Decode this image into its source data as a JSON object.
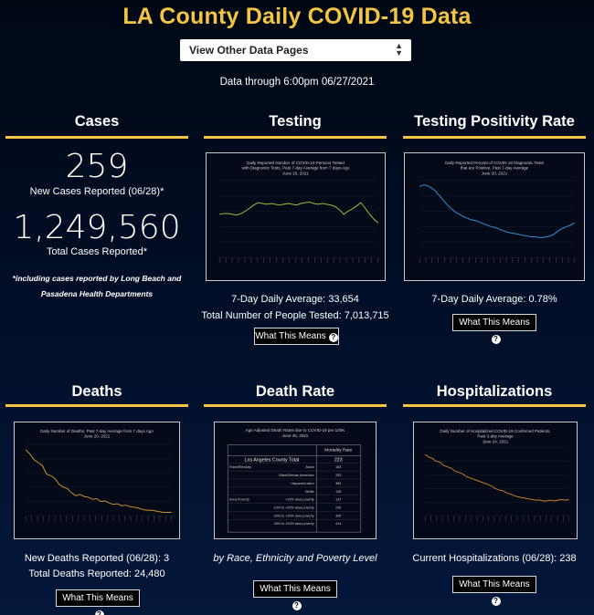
{
  "header": {
    "title": "LA County Daily COVID-19 Data",
    "select_value": "View Other Data Pages",
    "data_through": "Data through 6:00pm 06/27/2021"
  },
  "cases": {
    "title": "Cases",
    "new_cases": "259",
    "new_cases_label": "New Cases Reported (06/28)*",
    "total_cases": "1,249,560",
    "total_cases_label": "Total Cases Reported*",
    "note": "*including cases reported by Long Beach and Pasadena Health Departments"
  },
  "testing": {
    "title": "Testing",
    "chart_title_1": "Daily Reported Number of COVID-19 Persons Tested",
    "chart_title_2": "with Diagnostic Tests, Past 7-day Average from 7 days Ago",
    "chart_title_3": "June 20, 2021",
    "avg": "7-Day Daily Average: 33,654",
    "total": "Total Number of People Tested: 7,013,715",
    "button": "What This Means"
  },
  "positivity": {
    "title": "Testing Positivity Rate",
    "chart_title_1": "Daily Reported Percent of COVID-19 Diagnostic Tests",
    "chart_title_2": "that are Positive, Past 7-day Average",
    "chart_title_3": "June 20, 2021",
    "avg": "7-Day Daily Average: 0.78%",
    "button": "What This Means"
  },
  "deaths": {
    "title": "Deaths",
    "chart_title_1": "Daily Number of Deaths, Past 7-day Average from 7 days Ago",
    "chart_title_2": "June 20, 2021",
    "new": "New Deaths Reported (06/28): 3",
    "total": "Total Deaths Reported: 24,480",
    "button": "What This Means"
  },
  "death_rate": {
    "title": "Death Rate",
    "table_title_1": "Age Adjusted Death Rates due to COVID-19 per 100K",
    "table_title_2": "June 26, 2021",
    "col_header": "Mortality Rate",
    "county_label": "Los Angeles County Total",
    "county_value": "223",
    "rows": [
      {
        "group": "Race/Ethnicity",
        "label": "Asian",
        "value": "183"
      },
      {
        "group": "",
        "label": "Black/African American",
        "value": "253"
      },
      {
        "group": "",
        "label": "Hispanic/Latino",
        "value": "384"
      },
      {
        "group": "",
        "label": "White",
        "value": "128"
      },
      {
        "group": "Area Poverty",
        "label": "<10% area poverty",
        "value": "137"
      },
      {
        "group": "",
        "label": "10% to <20% area poverty",
        "value": "230"
      },
      {
        "group": "",
        "label": "20% to <30% area poverty",
        "value": "305"
      },
      {
        "group": "",
        "label": "30% to 100% area poverty",
        "value": "414"
      }
    ],
    "subtitle": "by Race, Ethnicity and Poverty Level",
    "button": "What This Means"
  },
  "hospitalizations": {
    "title": "Hospitalizations",
    "chart_title_1": "Daily Number of Hospitalized COVID-19 Confirmed Patients,",
    "chart_title_2": "Past 3-day Average",
    "chart_title_3": "June 24, 2021",
    "current": "Current Hospitalizations (06/28): 238",
    "button": "What This Means"
  },
  "colors": {
    "accent": "#f4c542",
    "testing_line": "#9bbf3a",
    "positivity_line": "#2f8fe0",
    "deaths_line": "#c9962a",
    "hosp_line": "#c9822a"
  },
  "chart_data": [
    {
      "type": "line",
      "name": "testing",
      "values": [
        56,
        57,
        57,
        56,
        55,
        57,
        60,
        64,
        68,
        71,
        70,
        69,
        70,
        69,
        68,
        69,
        70,
        69,
        68,
        70,
        71,
        72,
        70,
        69,
        70,
        69,
        68,
        66,
        62,
        56,
        60,
        63,
        67,
        71,
        64,
        56,
        50,
        45
      ]
    },
    {
      "type": "line",
      "name": "positivity",
      "values": [
        92,
        94,
        93,
        90,
        86,
        80,
        74,
        68,
        63,
        59,
        56,
        53,
        51,
        49,
        48,
        46,
        44,
        42,
        40,
        39,
        37,
        35,
        33,
        32,
        31,
        30,
        29,
        28,
        27,
        27,
        26,
        26,
        27,
        28,
        31,
        35,
        38,
        40,
        42,
        45
      ]
    },
    {
      "type": "line",
      "name": "deaths",
      "values": [
        92,
        86,
        78,
        74,
        70,
        58,
        56,
        52,
        44,
        40,
        38,
        32,
        28,
        30,
        27,
        26,
        23,
        24,
        20,
        21,
        18,
        16,
        17,
        14,
        15,
        13,
        12,
        11,
        9,
        8,
        8,
        7,
        6,
        5,
        5,
        5
      ]
    },
    {
      "type": "line",
      "name": "hospitalizations",
      "values": [
        90,
        86,
        84,
        80,
        79,
        74,
        72,
        70,
        66,
        64,
        62,
        58,
        56,
        54,
        52,
        50,
        48,
        46,
        44,
        40,
        38,
        37,
        34,
        32,
        30,
        28,
        27,
        26,
        25,
        24,
        23,
        23,
        22,
        22,
        23,
        22,
        23,
        24,
        23,
        24
      ]
    }
  ]
}
